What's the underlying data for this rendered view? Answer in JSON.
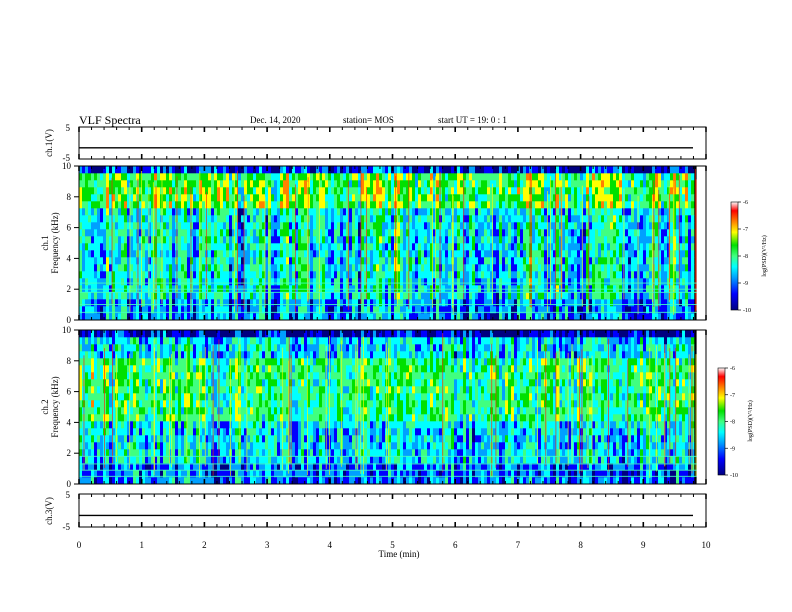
{
  "header": {
    "title": "VLF Spectra",
    "date": "Dec. 14, 2020",
    "station": "station= MOS",
    "start": "start  UT =   19: 0  : 1"
  },
  "panels": {
    "ch1v": {
      "label": "ch.1(V)",
      "ticks": [
        "5",
        "-5"
      ]
    },
    "ch1": {
      "label": "ch.1",
      "ylabel": "Frequency (kHz)",
      "ticks": [
        "0",
        "2",
        "4",
        "6",
        "8",
        "10"
      ]
    },
    "ch2": {
      "label": "ch.2",
      "ylabel": "Frequency (kHz)",
      "ticks": [
        "0",
        "2",
        "4",
        "6",
        "8",
        "10"
      ]
    },
    "ch3v": {
      "label": "ch.3(V)",
      "ticks": [
        "5",
        "-5"
      ]
    }
  },
  "colorbar": {
    "label": "log(PSD)(V²/Hz)",
    "ticks": [
      "-6",
      "-7",
      "-8",
      "-9",
      "-10"
    ]
  },
  "xaxis": {
    "label": "Time (min)",
    "ticks": [
      "0",
      "1",
      "2",
      "3",
      "4",
      "5",
      "6",
      "7",
      "8",
      "9",
      "10"
    ]
  },
  "chart_data": {
    "type": "heatmap",
    "title": "VLF Spectra",
    "x_range_min": [
      0,
      10
    ],
    "x_data_end_min": 9.85,
    "y_range_khz": [
      0,
      10
    ],
    "voltage_range": [
      -5,
      5
    ],
    "color_range_log_psd": [
      -10,
      -6
    ],
    "colormap": [
      "#000080",
      "#0000ff",
      "#00a0ff",
      "#00ffff",
      "#40ff80",
      "#00e000",
      "#ffff00",
      "#ff8000",
      "#ff0000",
      "#ffffff"
    ],
    "series": [
      {
        "name": "ch.1",
        "kind": "spectrogram",
        "strong_band_khz": [
          7.5,
          9.5
        ],
        "hum_lines_khz": [
          0.5,
          1.0,
          1.8,
          2.0,
          2.4
        ]
      },
      {
        "name": "ch.2",
        "kind": "spectrogram",
        "strong_band_khz": [
          4.0,
          8.0
        ],
        "hum_lines_khz": [
          0.5,
          0.9,
          1.3,
          1.8
        ]
      },
      {
        "name": "ch.1(V)",
        "kind": "waveform",
        "level_v": -1.5
      },
      {
        "name": "ch.3(V)",
        "kind": "waveform",
        "level_v": -1.5
      }
    ]
  }
}
